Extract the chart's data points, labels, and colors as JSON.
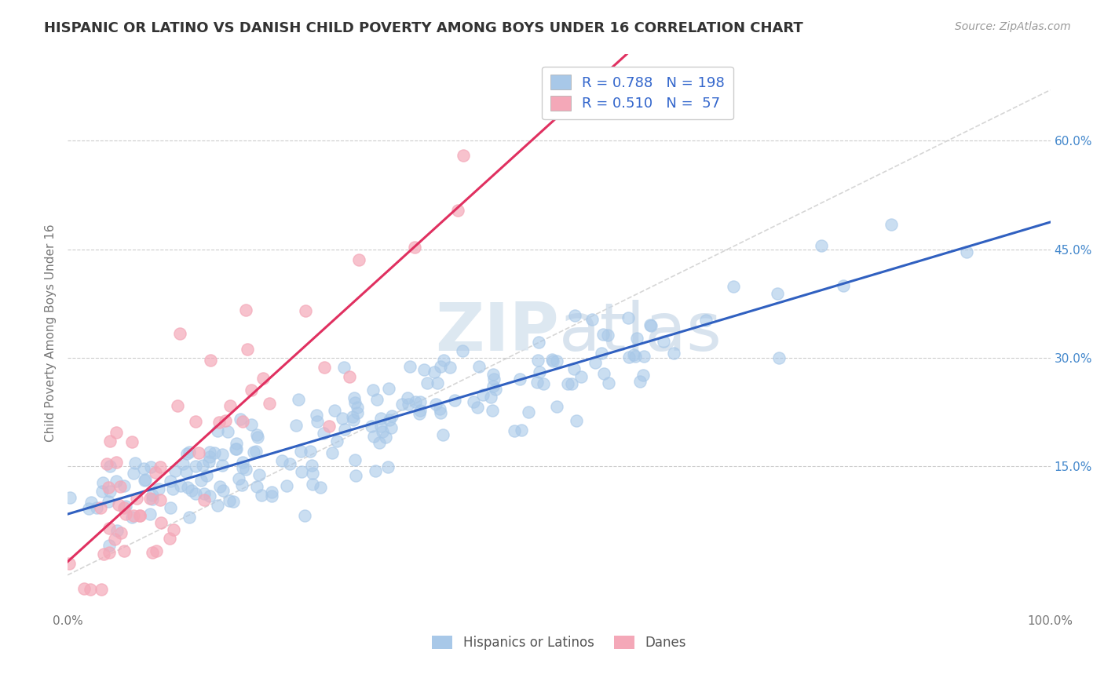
{
  "title": "HISPANIC OR LATINO VS DANISH CHILD POVERTY AMONG BOYS UNDER 16 CORRELATION CHART",
  "source": "Source: ZipAtlas.com",
  "ylabel": "Child Poverty Among Boys Under 16",
  "xlim": [
    0,
    1.0
  ],
  "ylim": [
    -0.05,
    0.72
  ],
  "x_ticks": [
    0.0,
    0.1,
    0.2,
    0.3,
    0.4,
    0.5,
    0.6,
    0.7,
    0.8,
    0.9,
    1.0
  ],
  "y_ticks": [
    0.15,
    0.3,
    0.45,
    0.6
  ],
  "y_tick_labels": [
    "15.0%",
    "30.0%",
    "45.0%",
    "60.0%"
  ],
  "R_blue": 0.788,
  "N_blue": 198,
  "R_pink": 0.51,
  "N_pink": 57,
  "blue_color": "#a8c8e8",
  "pink_color": "#f4a8b8",
  "blue_line_color": "#3060c0",
  "pink_line_color": "#e03060",
  "diag_line_color": "#cccccc",
  "legend_labels": [
    "Hispanics or Latinos",
    "Danes"
  ],
  "watermark_color": "#e0e8f0",
  "background_color": "#ffffff",
  "grid_color": "#cccccc"
}
